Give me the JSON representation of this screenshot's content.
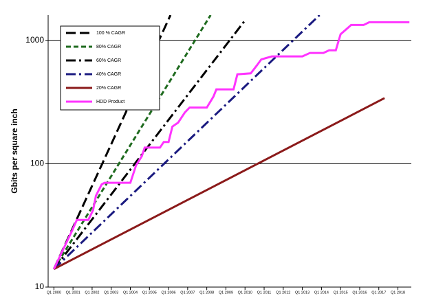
{
  "chart_data": {
    "type": "line",
    "ylabel": "Gbits per square inch",
    "log_y": true,
    "grid": true,
    "legend": "upper left",
    "xlim": [
      1999.7,
      2018.7
    ],
    "ylim": [
      10,
      1600
    ],
    "yticks": [
      10,
      100,
      1000
    ],
    "xticks": [
      {
        "value": 2000,
        "label": "Q1 2000"
      },
      {
        "value": 2001,
        "label": "Q1 2001"
      },
      {
        "value": 2002,
        "label": "Q1 2002"
      },
      {
        "value": 2003,
        "label": "Q1 2003"
      },
      {
        "value": 2004,
        "label": "Q1 2004"
      },
      {
        "value": 2005,
        "label": "Q1 2005"
      },
      {
        "value": 2006,
        "label": "Q1 2006"
      },
      {
        "value": 2007,
        "label": "Q1 2007"
      },
      {
        "value": 2008,
        "label": "Q1 2008"
      },
      {
        "value": 2009,
        "label": "Q1 2009"
      },
      {
        "value": 2010,
        "label": "Q1 2010"
      },
      {
        "value": 2011,
        "label": "Q1 2011"
      },
      {
        "value": 2012,
        "label": "Q1 2012"
      },
      {
        "value": 2013,
        "label": "Q1 2013"
      },
      {
        "value": 2014,
        "label": "Q1 2014"
      },
      {
        "value": 2015,
        "label": "Q1 2015"
      },
      {
        "value": 2016,
        "label": "Q1 2016"
      },
      {
        "value": 2017,
        "label": "Q1 2017"
      },
      {
        "value": 2018,
        "label": "Q1 2018"
      }
    ],
    "series": [
      {
        "name": "100 % CAGR",
        "color": "#000000",
        "dash": "14,6",
        "x": [
          2000,
          2006.1
        ],
        "values": [
          14,
          1600
        ]
      },
      {
        "name": "80% CAGR",
        "color": "#1f6b1f",
        "dash": "7,4",
        "x": [
          2000,
          2008.2
        ],
        "values": [
          14,
          1600
        ]
      },
      {
        "name": "60% CAGR",
        "color": "#000000",
        "dash": "14,5,3,5",
        "x": [
          2000,
          2010.0
        ],
        "values": [
          14,
          1450
        ]
      },
      {
        "name": "40% CAGR",
        "color": "#1a1a80",
        "dash": "14,5,3,5",
        "x": [
          2000,
          2013.9
        ],
        "values": [
          14,
          1600
        ]
      },
      {
        "name": "20% CAGR",
        "color": "#8b1a1a",
        "dash": "none",
        "x": [
          2000,
          2017.3
        ],
        "values": [
          14,
          340
        ]
      },
      {
        "name": "HDD Product",
        "color": "#ff33ff",
        "dash": "none",
        "x": [
          2000,
          2000.6,
          2000.97,
          2001.2,
          2001.8,
          2002.05,
          2002.2,
          2002.5,
          2002.65,
          2004.0,
          2004.3,
          2004.6,
          2004.75,
          2005.55,
          2005.75,
          2006.0,
          2006.2,
          2006.5,
          2006.85,
          2007.1,
          2008.0,
          2008.35,
          2008.5,
          2009.4,
          2009.6,
          2010.3,
          2010.6,
          2010.85,
          2011.4,
          2013.0,
          2013.4,
          2014.1,
          2014.4,
          2014.75,
          2015.0,
          2015.55,
          2016.2,
          2016.5,
          2018.6
        ],
        "values": [
          14,
          22,
          29,
          35,
          35,
          42,
          55,
          68,
          70,
          70,
          97,
          115,
          135,
          135,
          150,
          150,
          200,
          215,
          260,
          285,
          285,
          350,
          400,
          400,
          530,
          540,
          620,
          700,
          740,
          740,
          790,
          790,
          830,
          830,
          1120,
          1330,
          1330,
          1400,
          1400
        ]
      }
    ]
  }
}
